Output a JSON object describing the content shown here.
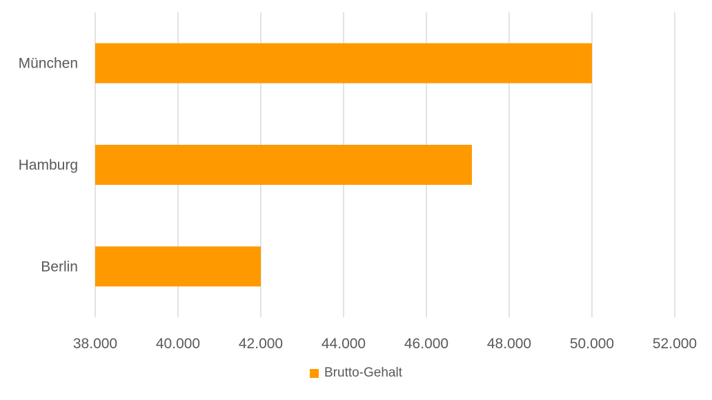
{
  "chart_data": {
    "type": "bar",
    "orientation": "horizontal",
    "categories": [
      "München",
      "Hamburg",
      "Berlin"
    ],
    "series": [
      {
        "name": "Brutto-Gehalt",
        "values": [
          50000,
          47100,
          42000
        ],
        "color": "#FF9900"
      }
    ],
    "xlim": [
      38000,
      52000
    ],
    "x_ticks": [
      38000,
      40000,
      42000,
      44000,
      46000,
      48000,
      50000,
      52000
    ],
    "x_tick_labels": [
      "38.000",
      "40.000",
      "42.000",
      "44.000",
      "46.000",
      "48.000",
      "50.000",
      "52.000"
    ],
    "grid": "vertical",
    "legend_position": "bottom"
  }
}
